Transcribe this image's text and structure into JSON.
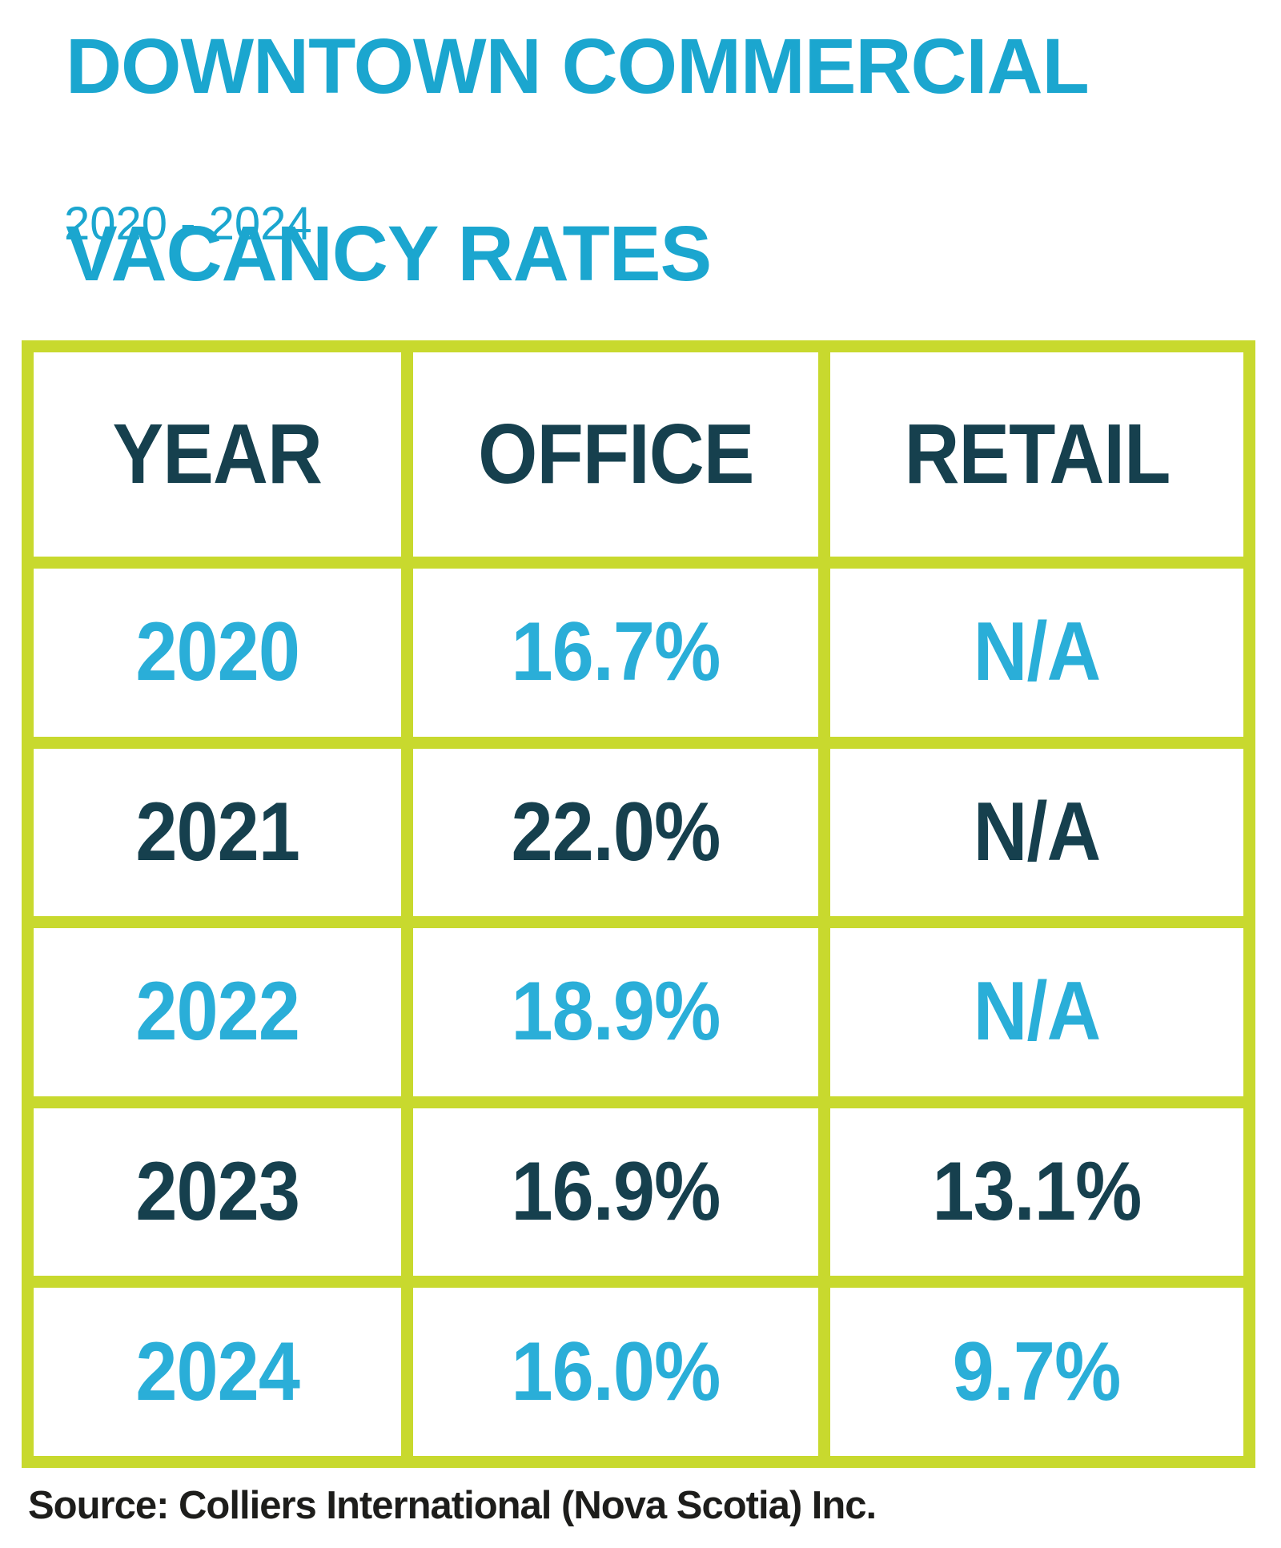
{
  "header": {
    "title_line1": "DOWNTOWN COMMERCIAL",
    "title_line2": "VACANCY RATES",
    "subtitle": "2020 - 2024"
  },
  "table": {
    "columns": [
      "YEAR",
      "OFFICE",
      "RETAIL"
    ],
    "rows": [
      {
        "year": "2020",
        "office": "16.7%",
        "retail": "N/A"
      },
      {
        "year": "2021",
        "office": "22.0%",
        "retail": "N/A"
      },
      {
        "year": "2022",
        "office": "18.9%",
        "retail": "N/A"
      },
      {
        "year": "2023",
        "office": "16.9%",
        "retail": "13.1%"
      },
      {
        "year": "2024",
        "office": "16.0%",
        "retail": "9.7%"
      }
    ]
  },
  "source": "Source: Colliers International (Nova Scotia) Inc.",
  "colors": {
    "title_cyan": "#1ba6cf",
    "cell_cyan": "#2aaed8",
    "navy": "#16404e",
    "lime_border": "#c8d92e",
    "source_text": "#1d1d1b",
    "background": "#ffffff"
  },
  "chart_data": {
    "type": "table",
    "title": "DOWNTOWN COMMERCIAL VACANCY RATES",
    "subtitle": "2020 - 2024",
    "columns": [
      "YEAR",
      "OFFICE",
      "RETAIL"
    ],
    "rows": [
      [
        "2020",
        "16.7%",
        "N/A"
      ],
      [
        "2021",
        "22.0%",
        "N/A"
      ],
      [
        "2022",
        "18.9%",
        "N/A"
      ],
      [
        "2023",
        "16.9%",
        "13.1%"
      ],
      [
        "2024",
        "16.0%",
        "9.7%"
      ]
    ],
    "series": [
      {
        "name": "OFFICE",
        "values_pct": [
          16.7,
          22.0,
          18.9,
          16.9,
          16.0
        ]
      },
      {
        "name": "RETAIL",
        "values_pct": [
          null,
          null,
          null,
          13.1,
          9.7
        ]
      }
    ],
    "categories": [
      "2020",
      "2021",
      "2022",
      "2023",
      "2024"
    ],
    "annotations": [
      "Source: Colliers International (Nova Scotia) Inc."
    ]
  }
}
